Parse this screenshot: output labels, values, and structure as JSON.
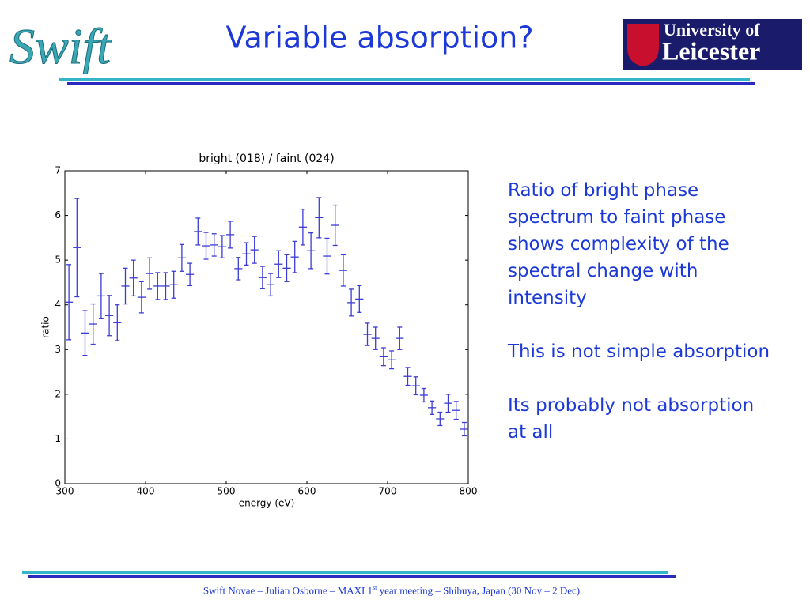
{
  "header": {
    "title": "Variable absorption?",
    "logo_left": "Swift",
    "logo_right": [
      "University of",
      "Leicester"
    ]
  },
  "body": {
    "paragraphs": [
      "Ratio of bright phase spectrum to faint phase shows complexity of the spectral change with intensity",
      "This is not simple absorption",
      "Its probably not absorption at all"
    ]
  },
  "footer": {
    "parts": [
      "Swift Novae – Julian Osborne – MAXI 1",
      "st",
      " year meeting – Shibuya, Japan (30 Nov – 2 Dec)"
    ]
  },
  "chart_data": {
    "type": "errorbar",
    "title": "bright (018) / faint (024)",
    "xlabel": "energy (eV)",
    "ylabel": "ratio",
    "color": "#3b3bd6",
    "x": [
      305,
      315,
      325,
      335,
      345,
      355,
      365,
      375,
      385,
      395,
      405,
      415,
      425,
      435,
      445,
      455,
      465,
      475,
      485,
      495,
      505,
      515,
      525,
      535,
      545,
      555,
      565,
      575,
      585,
      595,
      605,
      615,
      625,
      635,
      645,
      655,
      665,
      675,
      685,
      695,
      705,
      715,
      725,
      735,
      745,
      755,
      765,
      775,
      785,
      795
    ],
    "values": [
      4.06,
      5.28,
      3.37,
      3.57,
      4.2,
      3.76,
      3.6,
      4.42,
      4.6,
      4.17,
      4.7,
      4.42,
      4.42,
      4.45,
      5.05,
      4.68,
      5.64,
      5.32,
      5.34,
      5.3,
      5.57,
      4.81,
      5.14,
      5.23,
      4.61,
      4.45,
      4.91,
      4.82,
      5.07,
      5.74,
      5.21,
      5.95,
      5.09,
      5.78,
      4.77,
      4.05,
      4.13,
      3.34,
      3.25,
      2.84,
      2.77,
      3.25,
      2.4,
      2.19,
      1.98,
      1.7,
      1.45,
      1.8,
      1.64,
      1.22
    ],
    "yerr": [
      0.84,
      1.1,
      0.5,
      0.45,
      0.5,
      0.45,
      0.4,
      0.4,
      0.4,
      0.35,
      0.35,
      0.3,
      0.3,
      0.3,
      0.3,
      0.25,
      0.3,
      0.3,
      0.25,
      0.25,
      0.3,
      0.25,
      0.25,
      0.3,
      0.25,
      0.25,
      0.3,
      0.3,
      0.35,
      0.4,
      0.4,
      0.45,
      0.4,
      0.45,
      0.35,
      0.3,
      0.3,
      0.25,
      0.25,
      0.2,
      0.2,
      0.25,
      0.2,
      0.2,
      0.15,
      0.15,
      0.15,
      0.2,
      0.2,
      0.15
    ],
    "xerr": 5,
    "xlim": [
      300,
      800
    ],
    "xticks": [
      300,
      400,
      500,
      600,
      700,
      800
    ],
    "ylim": [
      0,
      7
    ],
    "yticks": [
      0,
      1,
      2,
      3,
      4,
      5,
      6,
      7
    ]
  }
}
